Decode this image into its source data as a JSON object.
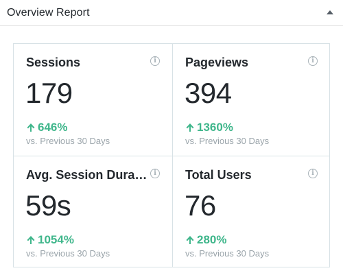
{
  "header": {
    "title": "Overview Report"
  },
  "metrics": [
    {
      "label": "Sessions",
      "value": "179",
      "change": "646%",
      "compare": "vs. Previous 30 Days",
      "icon": "info-icon"
    },
    {
      "label": "Pageviews",
      "value": "394",
      "change": "1360%",
      "compare": "vs. Previous 30 Days",
      "icon": "info-icon"
    },
    {
      "label": "Avg. Session Dura…",
      "value": "59s",
      "change": "1054%",
      "compare": "vs. Previous 30 Days",
      "icon": "info-icon"
    },
    {
      "label": "Total Users",
      "value": "76",
      "change": "280%",
      "compare": "vs. Previous 30 Days",
      "icon": "info-icon"
    }
  ],
  "colors": {
    "positive": "#3fb68b",
    "border": "#d8e2e6",
    "muted": "#9aa4aa"
  }
}
